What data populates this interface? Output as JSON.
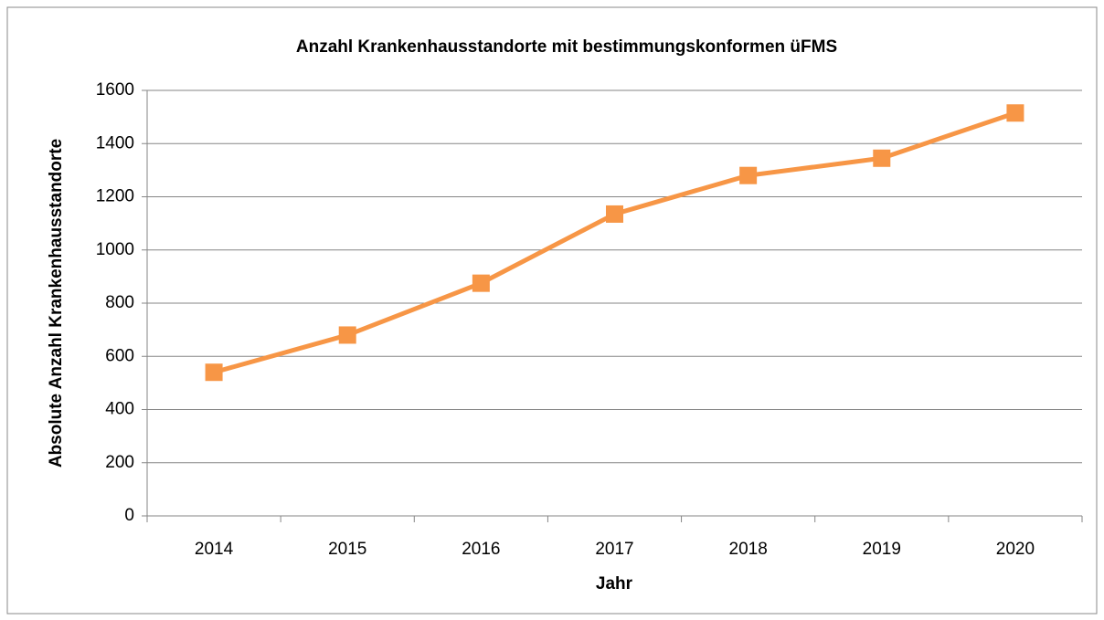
{
  "chart_data": {
    "type": "line",
    "title": "Anzahl Krankenhausstandorte mit bestimmungskonformen üFMS",
    "x_label": "Jahr",
    "y_label": "Absolute Anzahl Krankenhausstandorte",
    "categories": [
      "2014",
      "2015",
      "2016",
      "2017",
      "2018",
      "2019",
      "2020"
    ],
    "series": [
      {
        "name": "Anzahl",
        "color": "#f79646",
        "values": [
          540,
          680,
          875,
          1135,
          1280,
          1345,
          1515
        ]
      }
    ],
    "ylim": [
      0,
      1600
    ],
    "yticks": [
      0,
      200,
      400,
      600,
      800,
      1000,
      1200,
      1400,
      1600
    ],
    "grid": true
  }
}
